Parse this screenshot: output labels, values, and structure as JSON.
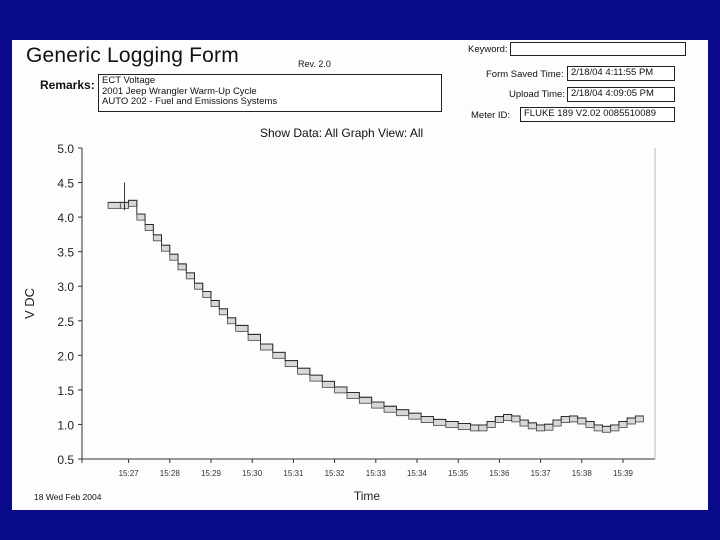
{
  "form": {
    "title": "Generic Logging Form",
    "revision": "Rev. 2.0",
    "keyword_label": "Keyword:",
    "keyword_value": "",
    "remarks_label": "Remarks:",
    "remarks_lines": [
      "ECT Voltage",
      "2001 Jeep Wrangler Warm-Up Cycle",
      "AUTO 202 - Fuel and Emissions Systems"
    ],
    "form_saved_label": "Form Saved Time:",
    "form_saved_value": "2/18/04 4:11:55 PM",
    "upload_label": "Upload Time:",
    "upload_value": "2/18/04 4:09:05 PM",
    "meter_label": "Meter ID:",
    "meter_value": "FLUKE 189   V2.02   0085510089",
    "show_data": "Show Data: All   Graph View: All",
    "footer_date": "18 Wed Feb 2004"
  },
  "chart_data": {
    "type": "line",
    "ylabel": "V DC",
    "xlabel": "Time",
    "ylim": [
      0.5,
      5.0
    ],
    "yticks": [
      "5.0",
      "4.5",
      "4.0",
      "3.5",
      "3.0",
      "2.5",
      "2.0",
      "1.5",
      "1.0",
      "0.5"
    ],
    "xticks": [
      "15:27",
      "15:28",
      "15:29",
      "15:30",
      "15:31",
      "15:32",
      "15:33",
      "15:34",
      "15:35",
      "15:36",
      "15:37",
      "15:38",
      "15:39"
    ],
    "grid": false,
    "series": [
      {
        "x": [
          0.0,
          0.3,
          0.5,
          0.7,
          0.9,
          1.1,
          1.3,
          1.5,
          1.7,
          1.9,
          2.1,
          2.3,
          2.5,
          2.7,
          2.9,
          3.1,
          3.4,
          3.7,
          4.0,
          4.3,
          4.6,
          4.9,
          5.2,
          5.5,
          5.8,
          6.1,
          6.4,
          6.7,
          7.0,
          7.3,
          7.6,
          7.9,
          8.2,
          8.5,
          8.8,
          9.0,
          9.2,
          9.4,
          9.6,
          9.8,
          10.0,
          10.2,
          10.4,
          10.6,
          10.8,
          11.0,
          11.2,
          11.4,
          11.6,
          11.8,
          12.0,
          12.2,
          12.4,
          12.6,
          12.8
        ],
        "y": [
          4.17,
          4.17,
          4.2,
          4.0,
          3.85,
          3.7,
          3.55,
          3.42,
          3.28,
          3.15,
          3.0,
          2.88,
          2.75,
          2.63,
          2.5,
          2.39,
          2.26,
          2.12,
          2.0,
          1.88,
          1.77,
          1.67,
          1.58,
          1.5,
          1.42,
          1.35,
          1.28,
          1.22,
          1.17,
          1.12,
          1.07,
          1.03,
          1.0,
          0.97,
          0.95,
          0.95,
          1.0,
          1.07,
          1.1,
          1.08,
          1.02,
          0.98,
          0.95,
          0.96,
          1.02,
          1.07,
          1.08,
          1.05,
          1.0,
          0.95,
          0.93,
          0.95,
          1.0,
          1.05,
          1.08
        ]
      }
    ]
  }
}
